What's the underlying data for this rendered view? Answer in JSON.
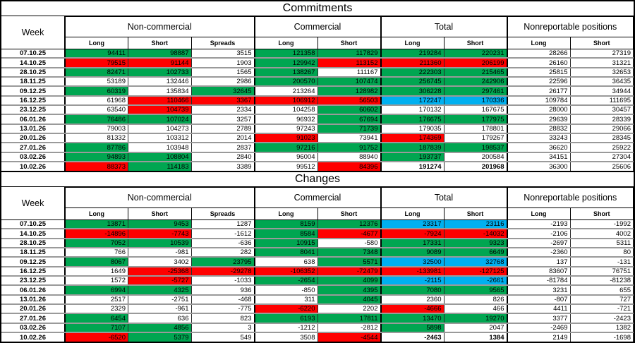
{
  "colors": {
    "green": "#00a651",
    "red": "#ff0000",
    "blue": "#00b0f0",
    "white": "#ffffff",
    "row_separator": "#9a9a9a",
    "border": "#000000"
  },
  "tables": [
    {
      "title": "Commitments",
      "week_header": "Week",
      "groups": [
        {
          "label": "Non-commercial",
          "cols": [
            "Long",
            "Short",
            "Spreads"
          ]
        },
        {
          "label": "Commercial",
          "cols": [
            "Long",
            "Short"
          ]
        },
        {
          "label": "Total",
          "cols": [
            "Long",
            "Short"
          ]
        },
        {
          "label": "Nonreportable positions",
          "cols": [
            "Long",
            "Short"
          ]
        }
      ],
      "rows": [
        {
          "week": "07.10.25",
          "values": [
            94411,
            98887,
            3515,
            121358,
            117829,
            219284,
            220231,
            28266,
            27319
          ],
          "fills": "ggwggggww"
        },
        {
          "week": "14.10.25",
          "values": [
            79515,
            91144,
            1903,
            129942,
            113152,
            211360,
            206199,
            26160,
            31321
          ],
          "fills": "rrwgrrrww"
        },
        {
          "week": "28.10.25",
          "values": [
            82471,
            102733,
            1565,
            138267,
            111167,
            222303,
            215465,
            25815,
            32653
          ],
          "fills": "ggwgwggww"
        },
        {
          "week": "18.11.25",
          "values": [
            53189,
            132446,
            2986,
            200570,
            107474,
            256745,
            242906,
            22596,
            36435
          ],
          "fills": "wwwggggww"
        },
        {
          "week": "09.12.25",
          "values": [
            60319,
            135834,
            32645,
            213264,
            128982,
            306228,
            297461,
            26177,
            34944
          ],
          "fills": "gwgwgggww"
        },
        {
          "week": "16.12.25",
          "values": [
            61968,
            110466,
            3367,
            106912,
            56503,
            172247,
            170336,
            109784,
            111695
          ],
          "fills": "wrrrrbbww"
        },
        {
          "week": "23.12.25",
          "values": [
            63540,
            104739,
            2334,
            104258,
            60602,
            170132,
            167675,
            28000,
            30457
          ],
          "fills": "wrwwgwwww"
        },
        {
          "week": "06.01.26",
          "values": [
            76486,
            107024,
            3257,
            96932,
            67694,
            176675,
            177975,
            29639,
            28339
          ],
          "fills": "ggwwgggww"
        },
        {
          "week": "13.01.26",
          "values": [
            79003,
            104273,
            2789,
            97243,
            71739,
            179035,
            178801,
            28832,
            29066
          ],
          "fills": "wwwwgwwww"
        },
        {
          "week": "20.01.26",
          "values": [
            81332,
            103312,
            2014,
            91023,
            73941,
            174369,
            179267,
            33243,
            28345
          ],
          "fills": "wwwrwrwww"
        },
        {
          "week": "27.01.26",
          "values": [
            87786,
            103948,
            2837,
            97216,
            91752,
            187839,
            198537,
            36620,
            25922
          ],
          "fills": "gwwggggww"
        },
        {
          "week": "03.02.26",
          "values": [
            94893,
            108804,
            2840,
            96004,
            88940,
            193737,
            200584,
            34151,
            27304
          ],
          "fills": "ggwwwgwww"
        },
        {
          "week": "10.02.26",
          "values": [
            88373,
            114183,
            3389,
            99512,
            84396,
            191274,
            201968,
            36300,
            25606
          ],
          "fills": "rgwwrwwww",
          "bold": [
            5,
            6
          ]
        }
      ]
    },
    {
      "title": "Changes",
      "week_header": "Week",
      "groups": [
        {
          "label": "Non-commercial",
          "cols": [
            "Long",
            "Short",
            "Spreads"
          ]
        },
        {
          "label": "Commercial",
          "cols": [
            "Long",
            "Short"
          ]
        },
        {
          "label": "Total",
          "cols": [
            "Long",
            "Short"
          ]
        },
        {
          "label": "Nonreportable positions",
          "cols": [
            "Long",
            "Short"
          ]
        }
      ],
      "rows": [
        {
          "week": "07.10.25",
          "values": [
            13871,
            9453,
            1287,
            8159,
            12376,
            23317,
            23116,
            -2193,
            -1992
          ],
          "fills": "ggwggbbww"
        },
        {
          "week": "14.10.25",
          "values": [
            -14896,
            -7743,
            -1612,
            8584,
            -4677,
            -7924,
            -14032,
            -2106,
            4002
          ],
          "fills": "rrwgrrrww"
        },
        {
          "week": "28.10.25",
          "values": [
            7052,
            10539,
            -636,
            10915,
            -580,
            17331,
            9323,
            -2697,
            5311
          ],
          "fills": "ggwgwggww"
        },
        {
          "week": "18.11.25",
          "values": [
            766,
            -981,
            282,
            8041,
            7348,
            9089,
            6649,
            -2360,
            80
          ],
          "fills": "wwwggggww"
        },
        {
          "week": "09.12.25",
          "values": [
            8067,
            3402,
            23795,
            638,
            5571,
            32500,
            32768,
            137,
            -131
          ],
          "fills": "gwgwgbbww"
        },
        {
          "week": "16.12.25",
          "values": [
            1649,
            -25368,
            -29278,
            -106352,
            -72479,
            -133981,
            -127125,
            83607,
            76751
          ],
          "fills": "wrrrrrrww"
        },
        {
          "week": "23.12.25",
          "values": [
            1572,
            -5727,
            -1033,
            -2654,
            4099,
            -2115,
            -2661,
            -81784,
            -81238
          ],
          "fills": "wrwggbbww"
        },
        {
          "week": "06.01.26",
          "values": [
            6994,
            4325,
            936,
            -850,
            4395,
            7080,
            9565,
            3231,
            655
          ],
          "fills": "ggwwgggww"
        },
        {
          "week": "13.01.26",
          "values": [
            2517,
            -2751,
            -468,
            311,
            4045,
            2360,
            826,
            -807,
            727
          ],
          "fills": "wwwwgwwww"
        },
        {
          "week": "20.01.26",
          "values": [
            2329,
            -961,
            -775,
            -6220,
            2202,
            -4666,
            466,
            4411,
            -721
          ],
          "fills": "wwwrwrwww"
        },
        {
          "week": "27.01.26",
          "values": [
            6454,
            636,
            823,
            6193,
            17811,
            13470,
            19270,
            3377,
            -2423
          ],
          "fills": "gwwggggww"
        },
        {
          "week": "03.02.26",
          "values": [
            7107,
            4856,
            3,
            -1212,
            -2812,
            5898,
            2047,
            -2469,
            1382
          ],
          "fills": "ggwwwgwww"
        },
        {
          "week": "10.02.26",
          "values": [
            -6520,
            5379,
            549,
            3508,
            -4544,
            -2463,
            1384,
            2149,
            -1698
          ],
          "fills": "rgwwrwwww",
          "bold": [
            5,
            6
          ]
        }
      ]
    }
  ]
}
